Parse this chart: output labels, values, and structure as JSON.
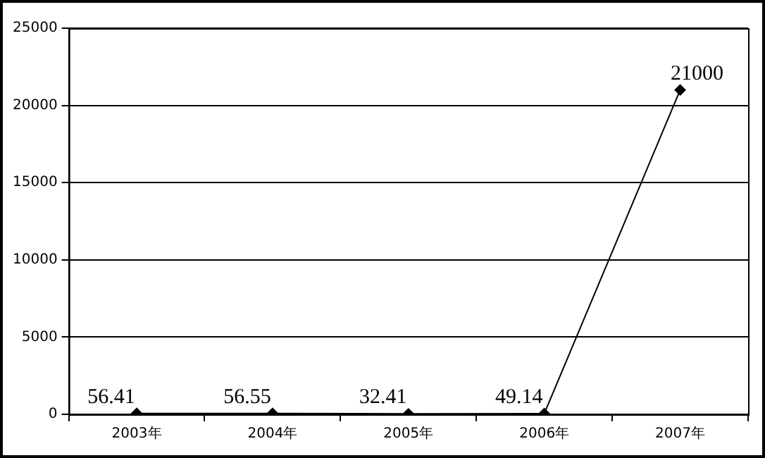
{
  "chart_data": {
    "type": "line",
    "categories": [
      "2003年",
      "2004年",
      "2005年",
      "2006年",
      "2007年"
    ],
    "series": [
      {
        "color": "#000000",
        "values": [
          56.41,
          56.55,
          32.41,
          49.14,
          21000
        ]
      }
    ],
    "ylim": [
      0,
      25000
    ],
    "yticks": [
      0,
      5000,
      10000,
      15000,
      20000,
      25000
    ],
    "grid": "y",
    "marker": "diamond",
    "line_style": "solid",
    "data_labels": true,
    "legend": false
  }
}
